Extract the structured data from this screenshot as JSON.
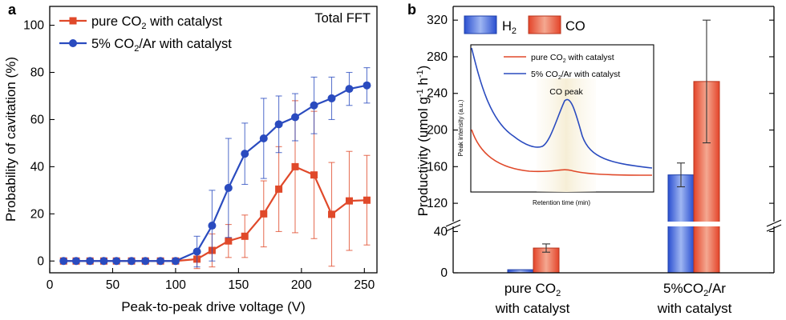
{
  "figure": {
    "panel_a_label": "a",
    "panel_b_label": "b"
  },
  "chart_data": [
    {
      "panel": "a",
      "type": "line",
      "annotation": "Total FFT",
      "xlabel": "Peak-to-peak drive voltage (V)",
      "ylabel": "Probability of cavitation (%)",
      "xlim": [
        0,
        260
      ],
      "ylim": [
        -5,
        108
      ],
      "xticks": [
        0,
        50,
        100,
        150,
        200,
        250
      ],
      "yticks": [
        0,
        20,
        40,
        60,
        80,
        100
      ],
      "grid": false,
      "legend_placement": "top-left",
      "series": [
        {
          "name": "pure CO2 with catalyst",
          "legend_main": "pure CO",
          "legend_sub": "2",
          "legend_rest": " with catalyst",
          "color": "#e0492a",
          "marker": "square",
          "x": [
            11,
            21,
            32,
            43,
            53,
            65,
            76,
            88,
            100,
            117,
            129,
            142,
            155,
            170,
            182,
            195,
            210,
            224,
            238,
            252
          ],
          "y": [
            0,
            0,
            0,
            0,
            0,
            0,
            0,
            0,
            0,
            0.8,
            4.5,
            8.5,
            10.5,
            20,
            30.5,
            40,
            36.5,
            19.8,
            25.5,
            25.8
          ],
          "err": [
            0,
            0,
            0,
            0,
            0,
            0,
            0,
            0,
            0,
            4,
            7,
            7,
            9,
            14,
            18,
            28,
            27,
            22,
            21,
            19
          ]
        },
        {
          "name": "5% CO2/Ar with catalyst",
          "legend_main": "5% CO",
          "legend_sub": "2",
          "legend_rest": "/Ar with catalyst",
          "color": "#2a4bbf",
          "marker": "circle",
          "x": [
            11,
            21,
            32,
            43,
            53,
            65,
            76,
            88,
            100,
            117,
            129,
            142,
            155,
            170,
            182,
            195,
            210,
            224,
            238,
            252
          ],
          "y": [
            0,
            0,
            0,
            0,
            0,
            0,
            0,
            0,
            0,
            4,
            15,
            31,
            45.5,
            52,
            58,
            61,
            66,
            69,
            73,
            74.5
          ],
          "err": [
            0,
            0,
            0,
            0,
            0,
            0,
            0,
            0,
            0,
            6.5,
            15,
            21,
            13,
            17,
            12,
            10,
            12,
            9,
            7,
            7.5
          ]
        }
      ]
    },
    {
      "panel": "b",
      "type": "bar",
      "ylabel_main": "Productivity (umol g",
      "ylabel_sup1": "-1",
      "ylabel_mid": " h",
      "ylabel_sup2": "-1",
      "ylabel_end": ")",
      "broken_axis": true,
      "lower_ylim": [
        0,
        45
      ],
      "upper_ylim": [
        100,
        335
      ],
      "yticks_lower": [
        0,
        40
      ],
      "yticks_upper": [
        120,
        160,
        200,
        240,
        280,
        320
      ],
      "grid": false,
      "legend_placement": "top-left",
      "categories": [
        {
          "line1_main": "pure CO",
          "line1_sub": "2",
          "line1_rest": "",
          "line2": "with catalyst"
        },
        {
          "line1_main": "5%CO",
          "line1_sub": "2",
          "line1_rest": "/Ar",
          "line2": "with catalyst"
        }
      ],
      "series": [
        {
          "name": "H2",
          "legend_main": "H",
          "legend_sub": "2",
          "color": "#2f58d6",
          "values": [
            3,
            151
          ],
          "err": [
            0,
            13
          ]
        },
        {
          "name": "CO",
          "legend_main": "CO",
          "legend_sub": "",
          "color": "#e0492a",
          "values": [
            24,
            253
          ],
          "err": [
            4,
            67
          ]
        }
      ],
      "inset": {
        "type": "line",
        "annotation": "CO peak",
        "xlabel": "Retention time (min)",
        "ylabel": "Peak intensity (a.u.)",
        "legend": [
          {
            "main": "pure CO",
            "sub": "2",
            "rest": " with catalyst",
            "color": "#e0492a"
          },
          {
            "main": "5% CO",
            "sub": "2",
            "rest": "/Ar with catalyst",
            "color": "#2a4bbf"
          }
        ]
      }
    }
  ]
}
